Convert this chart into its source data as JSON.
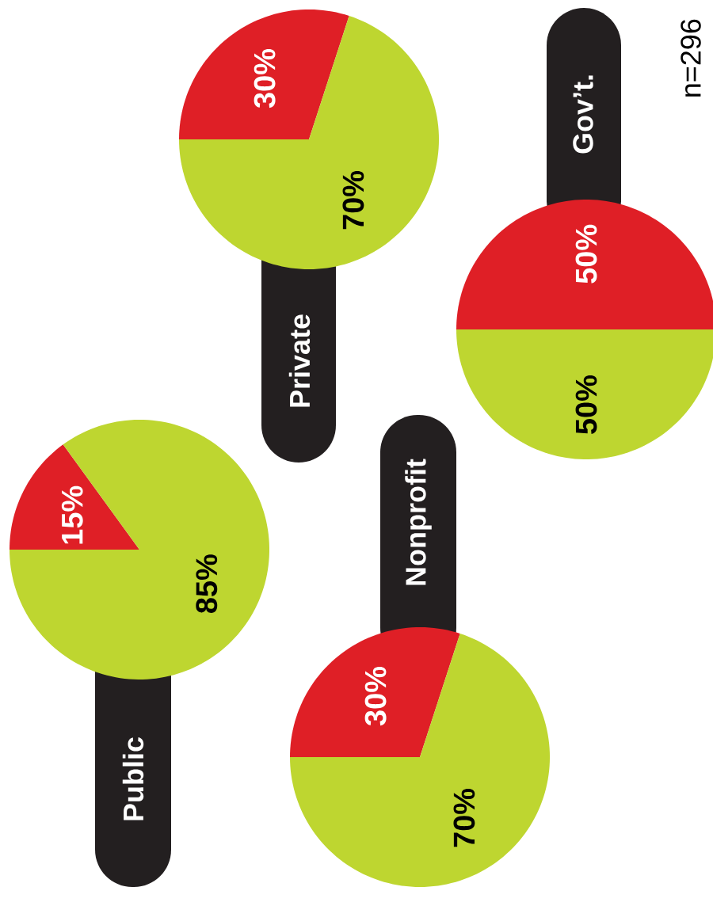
{
  "chart_data": [
    {
      "type": "pie",
      "title": "Public",
      "categories": [
        null,
        null
      ],
      "values": [
        15,
        85
      ],
      "colors": [
        "#df1f26",
        "#bed630"
      ],
      "value_labels": [
        "15%",
        "85%"
      ]
    },
    {
      "type": "pie",
      "title": "Private",
      "categories": [
        null,
        null
      ],
      "values": [
        30,
        70
      ],
      "colors": [
        "#df1f26",
        "#bed630"
      ],
      "value_labels": [
        "30%",
        "70%"
      ]
    },
    {
      "type": "pie",
      "title": "Nonprofit",
      "categories": [
        null,
        null
      ],
      "values": [
        30,
        70
      ],
      "colors": [
        "#df1f26",
        "#bed630"
      ],
      "value_labels": [
        "30%",
        "70%"
      ]
    },
    {
      "type": "pie",
      "title": "Gov’t.",
      "categories": [
        null,
        null
      ],
      "values": [
        50,
        50
      ],
      "colors": [
        "#df1f26",
        "#bed630"
      ],
      "value_labels": [
        "50%",
        "50%"
      ],
      "annotations": [
        "n=296"
      ]
    }
  ]
}
